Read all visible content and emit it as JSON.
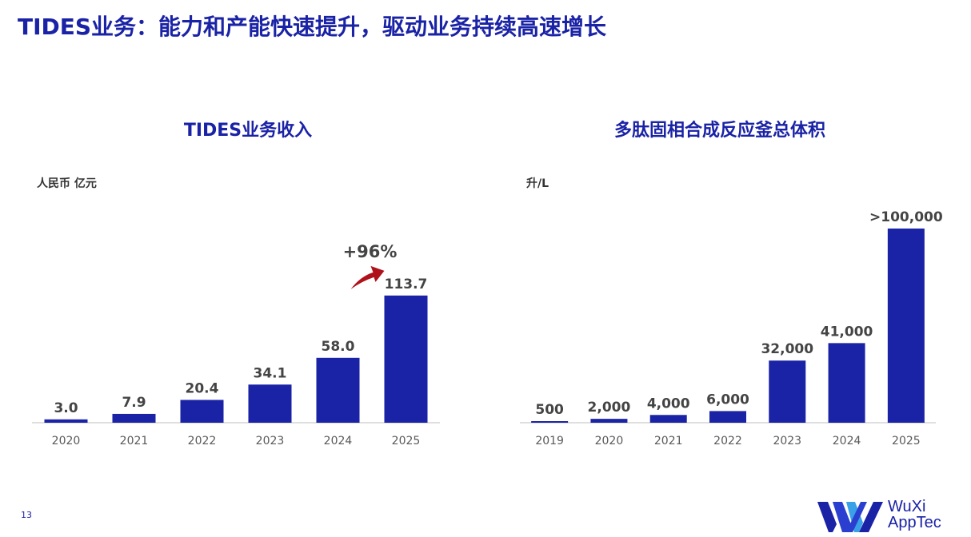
{
  "title": "TIDES业务：能力和产能快速提升，驱动业务持续高速增长",
  "page_number": "13",
  "logo": {
    "line1": "WuXi",
    "line2": "AppTec"
  },
  "colors": {
    "bar": "#1a22a6",
    "title": "#1a22a6",
    "arrow": "#b0121b",
    "axis": "#bfbfbf",
    "label": "#444444",
    "tick": "#595959"
  },
  "chart_data": [
    {
      "type": "bar",
      "title": "TIDES业务收入",
      "ylabel": "人民币 亿元",
      "categories": [
        "2020",
        "2021",
        "2022",
        "2023",
        "2024",
        "2025"
      ],
      "values": [
        3.0,
        7.9,
        20.4,
        34.1,
        58.0,
        113.7
      ],
      "data_labels": [
        "3.0",
        "7.9",
        "20.4",
        "34.1",
        "58.0",
        "113.7"
      ],
      "annotation": {
        "text": "+96%",
        "icon": "up-arrow-icon"
      },
      "ylim": [
        0,
        120
      ],
      "grid": false
    },
    {
      "type": "bar",
      "title": "多肽固相合成反应釜总体积",
      "ylabel": "升/L",
      "categories": [
        "2019",
        "2020",
        "2021",
        "2022",
        "2023",
        "2024",
        "2025"
      ],
      "values": [
        500,
        2000,
        4000,
        6000,
        32000,
        41000,
        100000
      ],
      "data_labels": [
        "500",
        "2,000",
        "4,000",
        "6,000",
        "32,000",
        "41,000",
        ">100,000"
      ],
      "ylim": [
        0,
        100000
      ],
      "grid": false
    }
  ]
}
